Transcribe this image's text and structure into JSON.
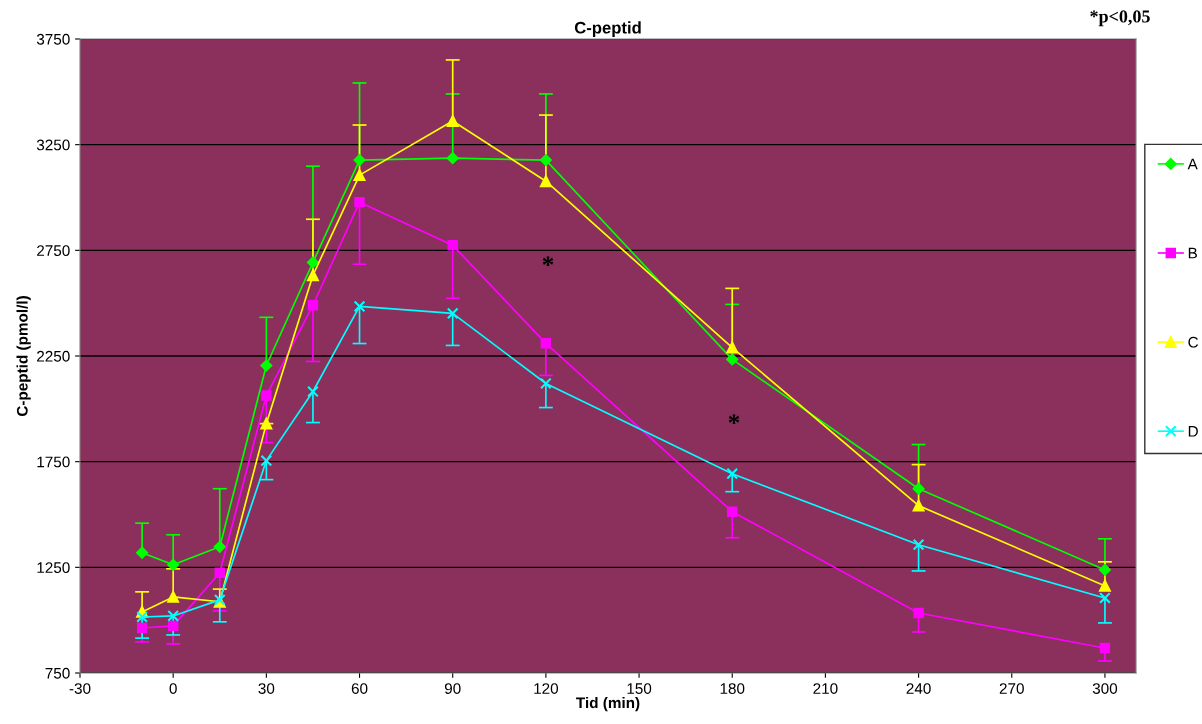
{
  "chart_data": {
    "type": "line",
    "title": "C-peptid",
    "xlabel": "Tid (min)",
    "ylabel": "C-peptid (pmol/l)",
    "x": [
      -10,
      0,
      15,
      30,
      45,
      60,
      90,
      120,
      180,
      240,
      300
    ],
    "xlim": [
      -30,
      310
    ],
    "xticks": [
      -30,
      0,
      30,
      60,
      90,
      120,
      150,
      180,
      210,
      240,
      270,
      300
    ],
    "ylim": [
      750,
      3750
    ],
    "yticks": [
      750,
      1250,
      1750,
      2250,
      2750,
      3250,
      3750
    ],
    "grid": "y",
    "legend": "right",
    "series": [
      {
        "name": "A",
        "color": "#00ff00",
        "marker": "diamond",
        "values": [
          1319,
          1262,
          1347,
          2205,
          2693,
          3177,
          3186,
          3177,
          2234,
          1622,
          1238
        ],
        "errors": [
          [
            1319,
            1459
          ],
          [
            1262,
            1404
          ],
          [
            1347,
            1622
          ],
          [
            2205,
            2433
          ],
          [
            2693,
            3148
          ],
          [
            3177,
            3542
          ],
          [
            3186,
            3490
          ],
          [
            3177,
            3490
          ],
          [
            2234,
            2494
          ],
          [
            1622,
            1831
          ],
          [
            1238,
            1385
          ]
        ]
      },
      {
        "name": "B",
        "color": "#ff00ff",
        "marker": "square",
        "values": [
          963,
          973,
          1224,
          2063,
          2490,
          2978,
          2774,
          2310,
          1513,
          1034,
          868
        ],
        "errors": [
          [
            897,
            963
          ],
          [
            887,
            973
          ],
          [
            1044,
            1224
          ],
          [
            1840,
            2063
          ],
          [
            2224,
            2490
          ],
          [
            2684,
            2978
          ],
          [
            2523,
            2774
          ],
          [
            2158,
            2310
          ],
          [
            1390,
            1513
          ],
          [
            944,
            1034
          ],
          [
            807,
            868
          ]
        ]
      },
      {
        "name": "C",
        "color": "#ffff00",
        "marker": "triangle",
        "values": [
          1039,
          1110,
          1087,
          1930,
          2632,
          3106,
          3362,
          3077,
          2290,
          1542,
          1162
        ],
        "errors": [
          [
            1039,
            1134
          ],
          [
            1110,
            1243
          ],
          [
            1087,
            1147
          ],
          null,
          [
            2632,
            2897
          ],
          [
            3106,
            3343
          ],
          [
            3362,
            3651
          ],
          [
            3077,
            3390
          ],
          [
            2290,
            2570
          ],
          [
            1542,
            1736
          ],
          [
            1162,
            1276
          ]
        ]
      },
      {
        "name": "D",
        "color": "#00ffff",
        "marker": "cross",
        "values": [
          1015,
          1020,
          1096,
          1755,
          2082,
          2485,
          2452,
          2120,
          1693,
          1357,
          1105
        ],
        "errors": [
          [
            915,
            1015
          ],
          [
            930,
            1020
          ],
          [
            992,
            1096
          ],
          [
            1665,
            1755
          ],
          [
            1935,
            2082
          ],
          [
            2309,
            2485
          ],
          [
            2300,
            2452
          ],
          [
            2006,
            2120
          ],
          [
            1608,
            1693
          ],
          [
            1233,
            1357
          ],
          [
            987,
            1105
          ]
        ]
      }
    ],
    "annotations": [
      "*p<0,05",
      "*",
      "*"
    ]
  }
}
